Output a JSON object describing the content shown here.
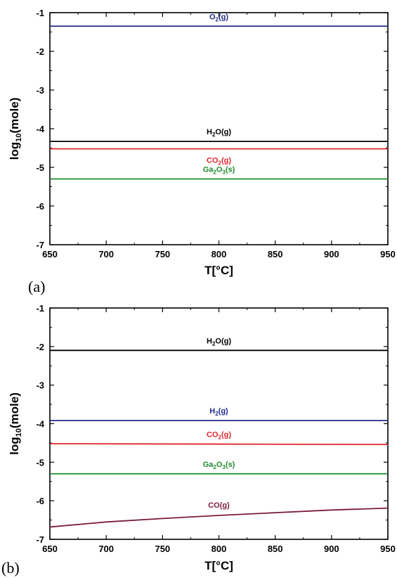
{
  "chart_data": [
    {
      "type": "line",
      "panel_label": "(a)",
      "xlabel": "T[°C]",
      "ylabel_main": "log",
      "ylabel_sub": "10",
      "ylabel_rest": "(mole)",
      "xlim": [
        650,
        950
      ],
      "ylim": [
        -7,
        -1
      ],
      "xticks": [
        650,
        700,
        750,
        800,
        850,
        900,
        950
      ],
      "yticks": [
        -1,
        -2,
        -3,
        -4,
        -5,
        -6,
        -7
      ],
      "series": [
        {
          "name": "O2(g)",
          "label_main": "O",
          "label_sub": "2",
          "label_rest": "(g)",
          "color": "#1f2a8f",
          "x": [
            650,
            950
          ],
          "y": [
            -1.35,
            -1.35
          ]
        },
        {
          "name": "H2O(g)",
          "label_main": "H",
          "label_sub": "2",
          "label_rest": "O(g)",
          "color": "#000000",
          "x": [
            650,
            950
          ],
          "y": [
            -4.33,
            -4.33
          ]
        },
        {
          "name": "CO2(g)",
          "label_main": "CO",
          "label_sub": "2",
          "label_rest": "(g)",
          "color": "#e0262b",
          "x": [
            650,
            950
          ],
          "y": [
            -4.52,
            -4.52
          ]
        },
        {
          "name": "Ga2O3(s)",
          "label_main": "Ga",
          "label_sub": "2",
          "label_rest": "O",
          "label_sub2": "3",
          "label_rest2": "(s)",
          "color": "#1e8a2c",
          "x": [
            650,
            950
          ],
          "y": [
            -5.3,
            -5.3
          ]
        }
      ]
    },
    {
      "type": "line",
      "panel_label": "(b)",
      "xlabel": "T[°C]",
      "ylabel_main": "log",
      "ylabel_sub": "10",
      "ylabel_rest": "(mole)",
      "xlim": [
        650,
        950
      ],
      "ylim": [
        -7,
        -1
      ],
      "xticks": [
        650,
        700,
        750,
        800,
        850,
        900,
        950
      ],
      "yticks": [
        -1,
        -2,
        -3,
        -4,
        -5,
        -6,
        -7
      ],
      "series": [
        {
          "name": "H2O(g)",
          "label_main": "H",
          "label_sub": "2",
          "label_rest": "O(g)",
          "color": "#000000",
          "x": [
            650,
            950
          ],
          "y": [
            -2.1,
            -2.1
          ]
        },
        {
          "name": "H2(g)",
          "label_main": "H",
          "label_sub": "2",
          "label_rest": "(g)",
          "color": "#1f2a8f",
          "x": [
            650,
            950
          ],
          "y": [
            -3.92,
            -3.92
          ]
        },
        {
          "name": "CO2(g)",
          "label_main": "CO",
          "label_sub": "2",
          "label_rest": "(g)",
          "color": "#e0262b",
          "x": [
            650,
            800,
            950
          ],
          "y": [
            -4.52,
            -4.53,
            -4.54
          ]
        },
        {
          "name": "Ga2O3(s)",
          "label_main": "Ga",
          "label_sub": "2",
          "label_rest": "O",
          "label_sub2": "3",
          "label_rest2": "(s)",
          "color": "#1e8a2c",
          "x": [
            650,
            950
          ],
          "y": [
            -5.3,
            -5.3
          ]
        },
        {
          "name": "CO(g)",
          "label_main": "CO(g)",
          "color": "#7a1a3a",
          "x": [
            650,
            700,
            750,
            800,
            850,
            900,
            950
          ],
          "y": [
            -6.68,
            -6.55,
            -6.46,
            -6.38,
            -6.31,
            -6.24,
            -6.19
          ]
        }
      ]
    }
  ]
}
